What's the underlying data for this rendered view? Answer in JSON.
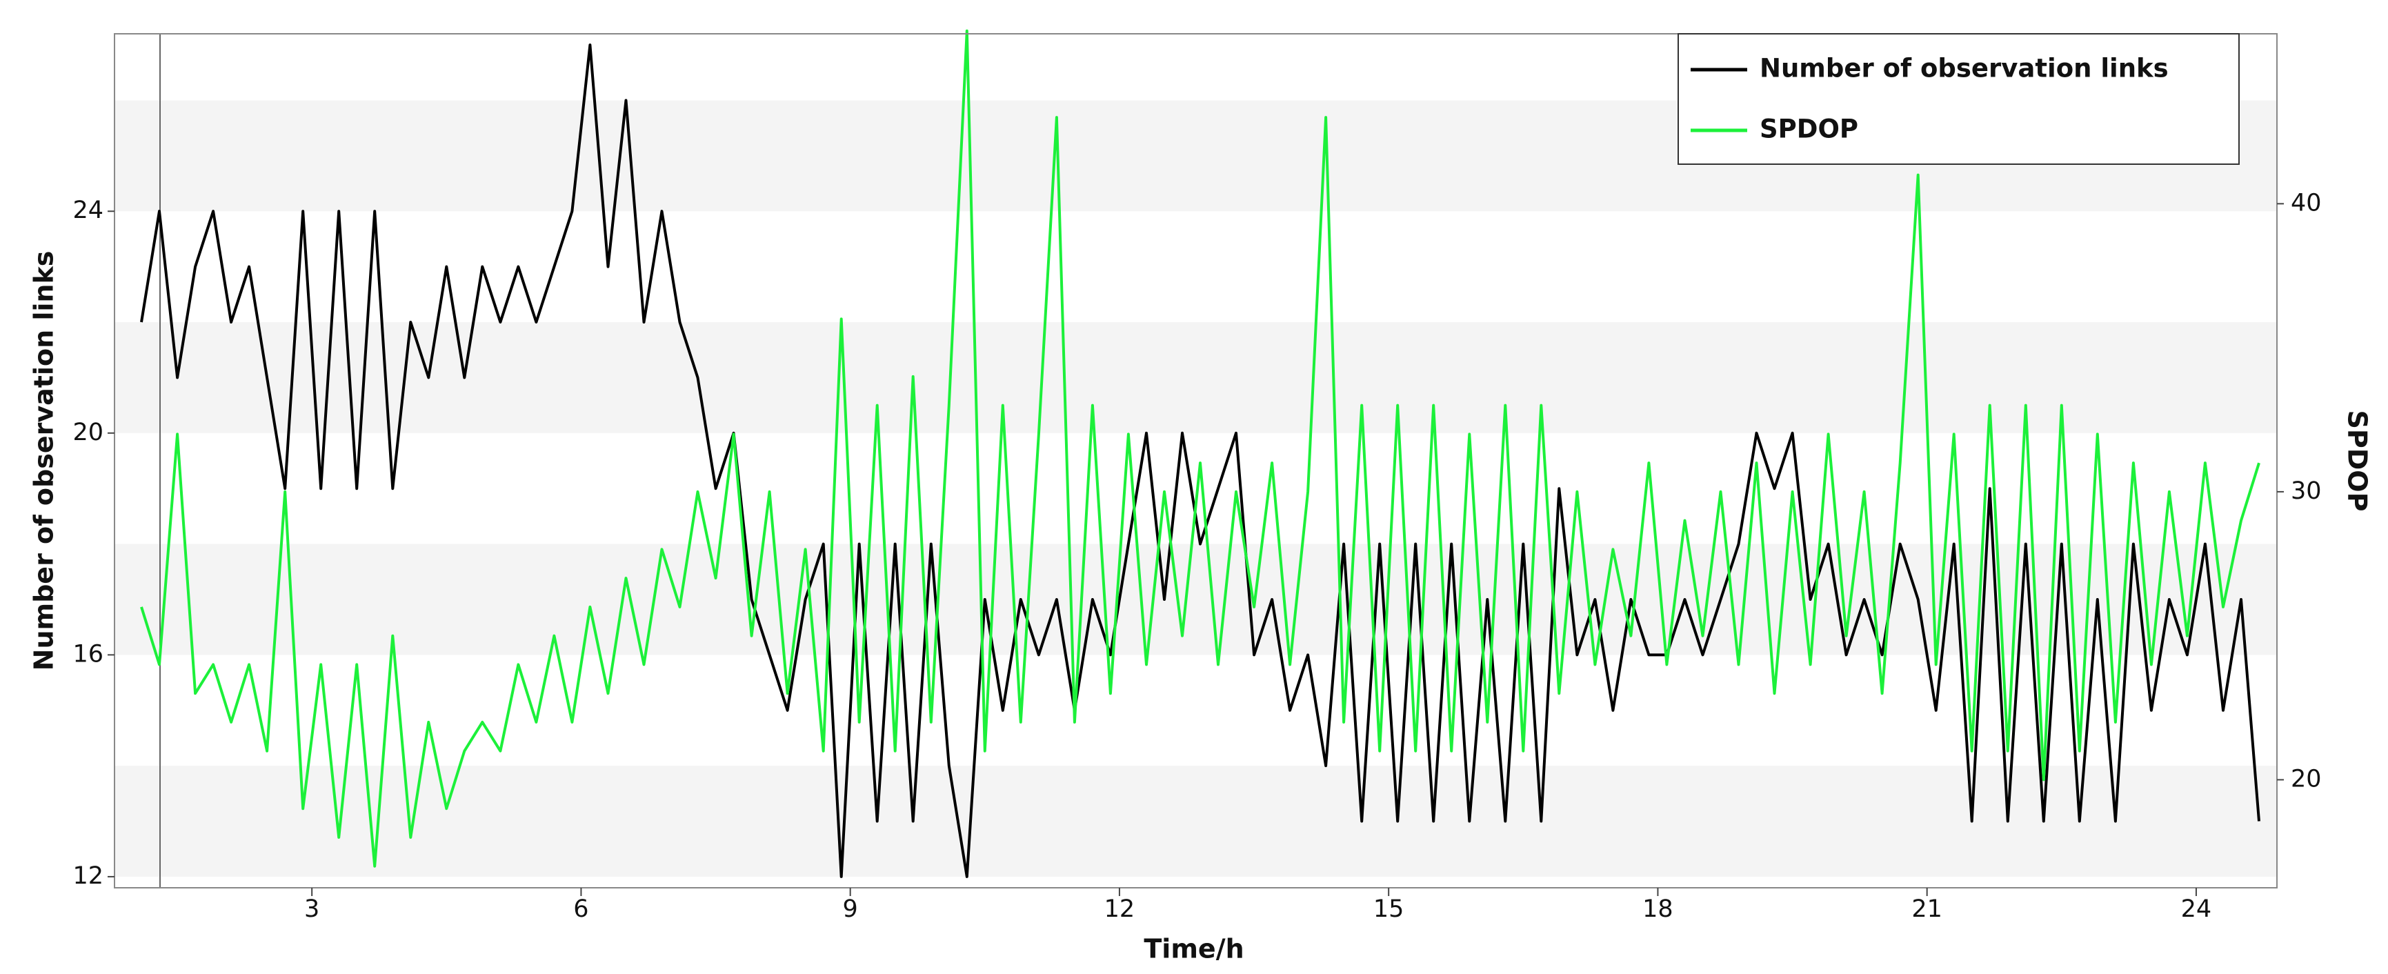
{
  "chart_data": {
    "type": "line",
    "x_label": "Time/h",
    "y_label": "Number of observation links",
    "y2_label": "SPDOP",
    "xlim": [
      0.8,
      24.9
    ],
    "xticks": [
      3,
      6,
      9,
      12,
      15,
      18,
      21,
      24
    ],
    "ylim": [
      11.8,
      27.2
    ],
    "yticks": [
      12,
      16,
      20,
      24
    ],
    "y2lim": [
      16.25,
      45.9
    ],
    "y2ticks": [
      20,
      30,
      40
    ],
    "grid": "bands",
    "legend": "upper right",
    "x": [
      1.1,
      1.3,
      1.5,
      1.7,
      1.9,
      2.1,
      2.3,
      2.5,
      2.7,
      2.9,
      3.1,
      3.3,
      3.5,
      3.7,
      3.9,
      4.1,
      4.3,
      4.5,
      4.7,
      4.9,
      5.1,
      5.3,
      5.5,
      5.7,
      5.9,
      6.1,
      6.3,
      6.5,
      6.7,
      6.9,
      7.1,
      7.3,
      7.5,
      7.7,
      7.9,
      8.1,
      8.3,
      8.5,
      8.7,
      8.9,
      9.1,
      9.3,
      9.5,
      9.7,
      9.9,
      10.1,
      10.3,
      10.5,
      10.7,
      10.9,
      11.1,
      11.3,
      11.5,
      11.7,
      11.9,
      12.1,
      12.3,
      12.5,
      12.7,
      12.9,
      13.1,
      13.3,
      13.5,
      13.7,
      13.9,
      14.1,
      14.3,
      14.5,
      14.7,
      14.9,
      15.1,
      15.3,
      15.5,
      15.7,
      15.9,
      16.1,
      16.3,
      16.5,
      16.7,
      16.9,
      17.1,
      17.3,
      17.5,
      17.7,
      17.9,
      18.1,
      18.3,
      18.5,
      18.7,
      18.9,
      19.1,
      19.3,
      19.5,
      19.7,
      19.9,
      20.1,
      20.3,
      20.5,
      20.7,
      20.9,
      21.1,
      21.3,
      21.5,
      21.7,
      21.9,
      22.1,
      22.3,
      22.5,
      22.7,
      22.9,
      23.1,
      23.3,
      23.5,
      23.7,
      23.9,
      24.1,
      24.3,
      24.5,
      24.7
    ],
    "series": [
      {
        "name": "Number of observation links",
        "color": "#000000",
        "values": [
          22,
          24,
          21,
          23,
          24,
          22,
          23,
          21,
          19,
          24,
          19,
          24,
          19,
          24,
          19,
          22,
          21,
          23,
          21,
          23,
          22,
          23,
          22,
          23,
          24,
          27,
          23,
          26,
          22,
          24,
          22,
          21,
          19,
          20,
          17,
          16,
          15,
          17,
          18,
          12,
          18,
          13,
          18,
          13,
          18,
          14,
          12,
          17,
          15,
          17,
          16,
          17,
          15,
          17,
          16,
          18,
          20,
          17,
          20,
          18,
          19,
          20,
          16,
          17,
          15,
          16,
          14,
          18,
          13,
          18,
          13,
          18,
          13,
          18,
          13,
          17,
          13,
          18,
          13,
          19,
          16,
          17,
          15,
          17,
          16,
          16,
          17,
          16,
          17,
          18,
          20,
          19,
          20,
          17,
          18,
          16,
          17,
          16,
          18,
          17,
          15,
          18,
          13,
          19,
          13,
          18,
          13,
          18,
          13,
          17,
          13,
          18,
          15,
          17,
          16,
          18,
          15,
          17,
          13
        ]
      },
      {
        "name": "SPDOP",
        "color": "#1cf03a",
        "axis": "y2",
        "values": [
          26,
          24,
          32,
          23,
          24,
          22,
          24,
          21,
          30,
          19,
          24,
          18,
          24,
          17,
          25,
          18,
          22,
          19,
          21,
          22,
          21,
          24,
          22,
          25,
          22,
          26,
          23,
          27,
          24,
          28,
          26,
          30,
          27,
          32,
          25,
          30,
          23,
          28,
          21,
          36,
          22,
          33,
          21,
          34,
          22,
          33,
          46,
          21,
          33,
          22,
          32,
          43,
          22,
          33,
          23,
          32,
          24,
          30,
          25,
          31,
          24,
          30,
          26,
          31,
          24,
          30,
          43,
          22,
          33,
          21,
          33,
          21,
          33,
          21,
          32,
          22,
          33,
          21,
          33,
          23,
          30,
          24,
          28,
          25,
          31,
          24,
          29,
          25,
          30,
          24,
          31,
          23,
          30,
          24,
          32,
          25,
          30,
          23,
          31,
          41,
          24,
          32,
          21,
          33,
          21,
          33,
          20,
          33,
          21,
          32,
          22,
          31,
          24,
          30,
          25,
          31,
          26,
          29,
          31
        ]
      }
    ]
  }
}
